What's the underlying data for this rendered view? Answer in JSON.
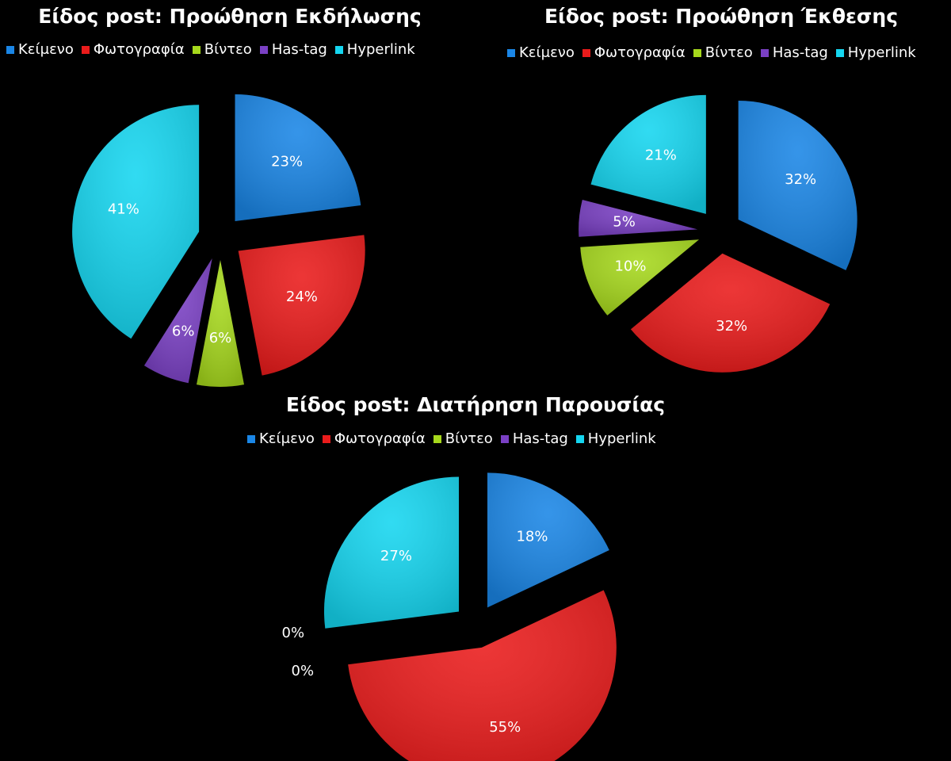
{
  "colors": [
    "#1a86e6",
    "#ea1b1b",
    "#a6d81c",
    "#7a40c4",
    "#15d6f0"
  ],
  "chart_data": [
    {
      "type": "pie",
      "title": "Είδος post: Προώθηση Εκδήλωσης",
      "legend_position": "top",
      "categories": [
        "Κείμενο",
        "Φωτογραφία",
        "Βίντεο",
        "Has-tag",
        "Hyperlink"
      ],
      "values": [
        23,
        24,
        6,
        6,
        41
      ],
      "labels": [
        "23%",
        "24%",
        "6%",
        "6%",
        "41%"
      ]
    },
    {
      "type": "pie",
      "title": "Είδος post: Προώθηση Έκθεσης",
      "legend_position": "top",
      "categories": [
        "Κείμενο",
        "Φωτογραφία",
        "Βίντεο",
        "Has-tag",
        "Hyperlink"
      ],
      "values": [
        32,
        32,
        10,
        5,
        21
      ],
      "labels": [
        "32%",
        "32%",
        "10%",
        "5%",
        "21%"
      ]
    },
    {
      "type": "pie",
      "title": "Είδος post: Διατήρηση Παρουσίας",
      "legend_position": "top",
      "categories": [
        "Κείμενο",
        "Φωτογραφία",
        "Βίντεο",
        "Has-tag",
        "Hyperlink"
      ],
      "values": [
        18,
        55,
        0,
        0,
        27
      ],
      "labels": [
        "18%",
        "55%",
        "0%",
        "0%",
        "27%"
      ]
    }
  ]
}
